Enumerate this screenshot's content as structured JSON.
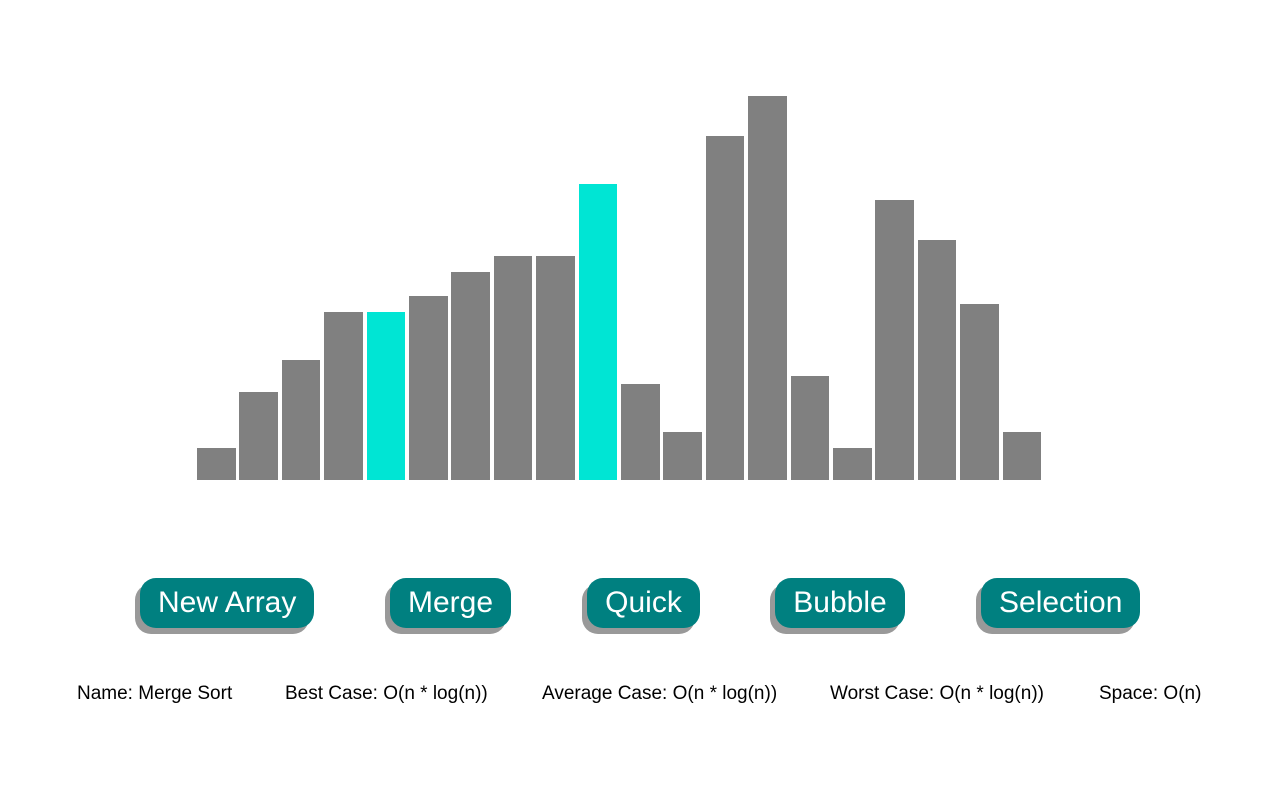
{
  "visualizer": {
    "array": [
      8,
      22,
      30,
      42,
      42,
      46,
      52,
      56,
      56,
      74,
      24,
      12,
      86,
      96,
      26,
      8,
      70,
      60,
      44,
      12
    ],
    "max_value": 100,
    "highlighted_indices": [
      4,
      9
    ],
    "colors": {
      "bar": "#808080",
      "highlight": "#00e5d4"
    }
  },
  "controls": {
    "new_array_label": "New Array",
    "merge_label": "Merge",
    "quick_label": "Quick",
    "bubble_label": "Bubble",
    "selection_label": "Selection",
    "button_color": "#008080"
  },
  "info": {
    "name": "Name: Merge Sort",
    "best": "Best Case: O(n * log(n))",
    "average": "Average Case: O(n * log(n))",
    "worst": "Worst Case: O(n * log(n))",
    "space": "Space: O(n)"
  }
}
